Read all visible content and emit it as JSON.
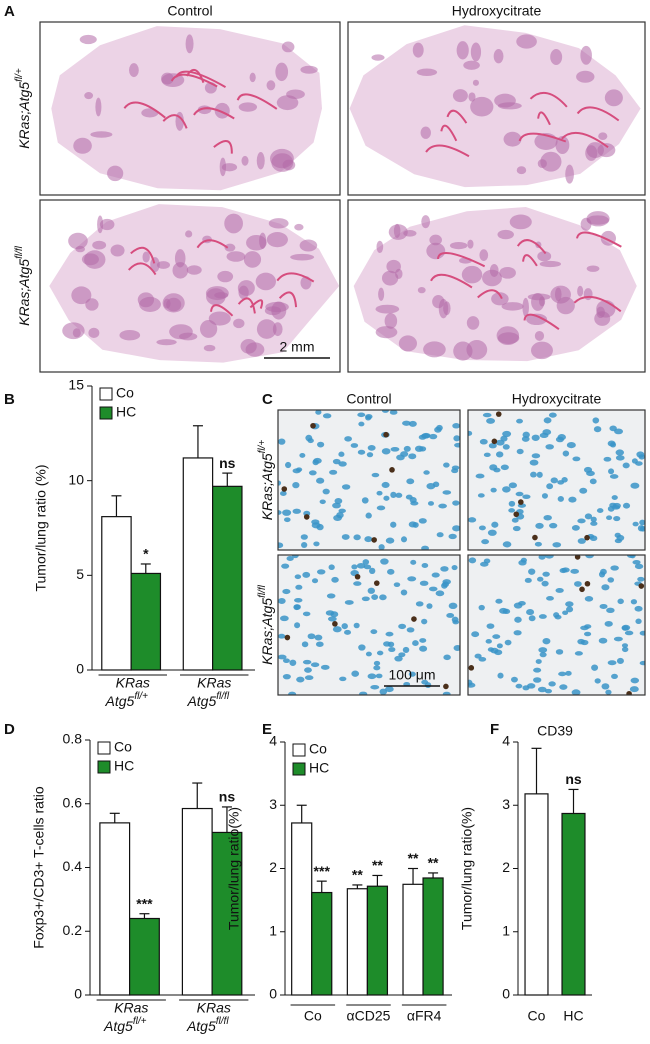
{
  "histology": [
    {
      "panel": "A",
      "columns": [
        "Control",
        "Hydroxycitrate"
      ],
      "rows": [
        [
          "KRas;Atg5",
          "fl/+"
        ],
        [
          "KRas;Atg5",
          "fl/fl"
        ]
      ],
      "scale_bar": "2 mm"
    },
    {
      "panel": "C",
      "columns": [
        "Control",
        "Hydroxycitrate"
      ],
      "rows": [
        [
          "KRas;Atg5",
          "fl/+"
        ],
        [
          "KRas;Atg5",
          "fl/fl"
        ]
      ],
      "scale_bar": "100 μm"
    }
  ],
  "chart_data": [
    {
      "type": "bar",
      "panel": "B",
      "ylabel": "Tumor/lung ratio (%)",
      "categories": [
        [
          "KRas",
          "Atg5",
          "fl/+"
        ],
        [
          "KRas",
          "Atg5",
          "fl/fl"
        ]
      ],
      "series": [
        {
          "name": "Co",
          "color": "#ffffff",
          "values": [
            8.1,
            11.2
          ],
          "errors": [
            1.1,
            1.7
          ],
          "annotations": [
            null,
            null
          ]
        },
        {
          "name": "HC",
          "color": "#1e8c2a",
          "values": [
            5.1,
            9.7
          ],
          "errors": [
            0.5,
            0.7
          ],
          "annotations": [
            "*",
            "ns"
          ],
          "annotation_colors": [
            "#111111",
            "#111111"
          ]
        }
      ],
      "ylim": [
        0,
        15
      ],
      "yticks": [
        0,
        5,
        10,
        15
      ]
    },
    {
      "type": "bar",
      "panel": "D",
      "ylabel": "Foxp3+/CD3+ T-cells ratio",
      "categories": [
        [
          "KRas",
          "Atg5",
          "fl/+"
        ],
        [
          "KRas",
          "Atg5",
          "fl/fl"
        ]
      ],
      "series": [
        {
          "name": "Co",
          "color": "#ffffff",
          "values": [
            0.54,
            0.585
          ],
          "errors": [
            0.03,
            0.08
          ],
          "annotations": [
            null,
            null
          ]
        },
        {
          "name": "HC",
          "color": "#1e8c2a",
          "values": [
            0.24,
            0.51
          ],
          "errors": [
            0.015,
            0.08
          ],
          "annotations": [
            "***",
            "ns"
          ],
          "annotation_colors": [
            "#111111",
            "#111111"
          ]
        }
      ],
      "ylim": [
        0,
        0.8
      ],
      "yticks": [
        0,
        0.2,
        0.4,
        0.6,
        0.8
      ]
    },
    {
      "type": "bar",
      "panel": "E",
      "ylabel": "Tumor/lung ratio(%)",
      "categories": [
        "Co",
        "αCD25",
        "αFR4"
      ],
      "series": [
        {
          "name": "Co",
          "color": "#ffffff",
          "values": [
            2.72,
            1.68,
            1.75
          ],
          "errors": [
            0.28,
            0.06,
            0.25
          ],
          "annotations": [
            null,
            "**",
            "**"
          ],
          "annotation_colors": [
            "#111111",
            "#111111",
            "#111111"
          ]
        },
        {
          "name": "HC",
          "color": "#1e8c2a",
          "values": [
            1.62,
            1.72,
            1.85
          ],
          "errors": [
            0.18,
            0.17,
            0.08
          ],
          "annotations": [
            "***",
            "**",
            "**"
          ],
          "annotation_colors": [
            "#111111",
            "#1e8c2a",
            "#1e8c2a"
          ]
        }
      ],
      "ylim": [
        0,
        4
      ],
      "yticks": [
        0,
        1,
        2,
        3,
        4
      ]
    },
    {
      "type": "bar",
      "panel": "F",
      "title": "CD39",
      "ylabel": "Tumor/lung ratio(%)",
      "categories": [
        "Co",
        "HC"
      ],
      "values": [
        3.18,
        2.87
      ],
      "errors": [
        0.72,
        0.38
      ],
      "colors": [
        "#ffffff",
        "#1e8c2a"
      ],
      "annotations": [
        null,
        "ns"
      ],
      "ylim": [
        0,
        4
      ],
      "yticks": [
        0,
        1,
        2,
        3,
        4
      ]
    }
  ]
}
